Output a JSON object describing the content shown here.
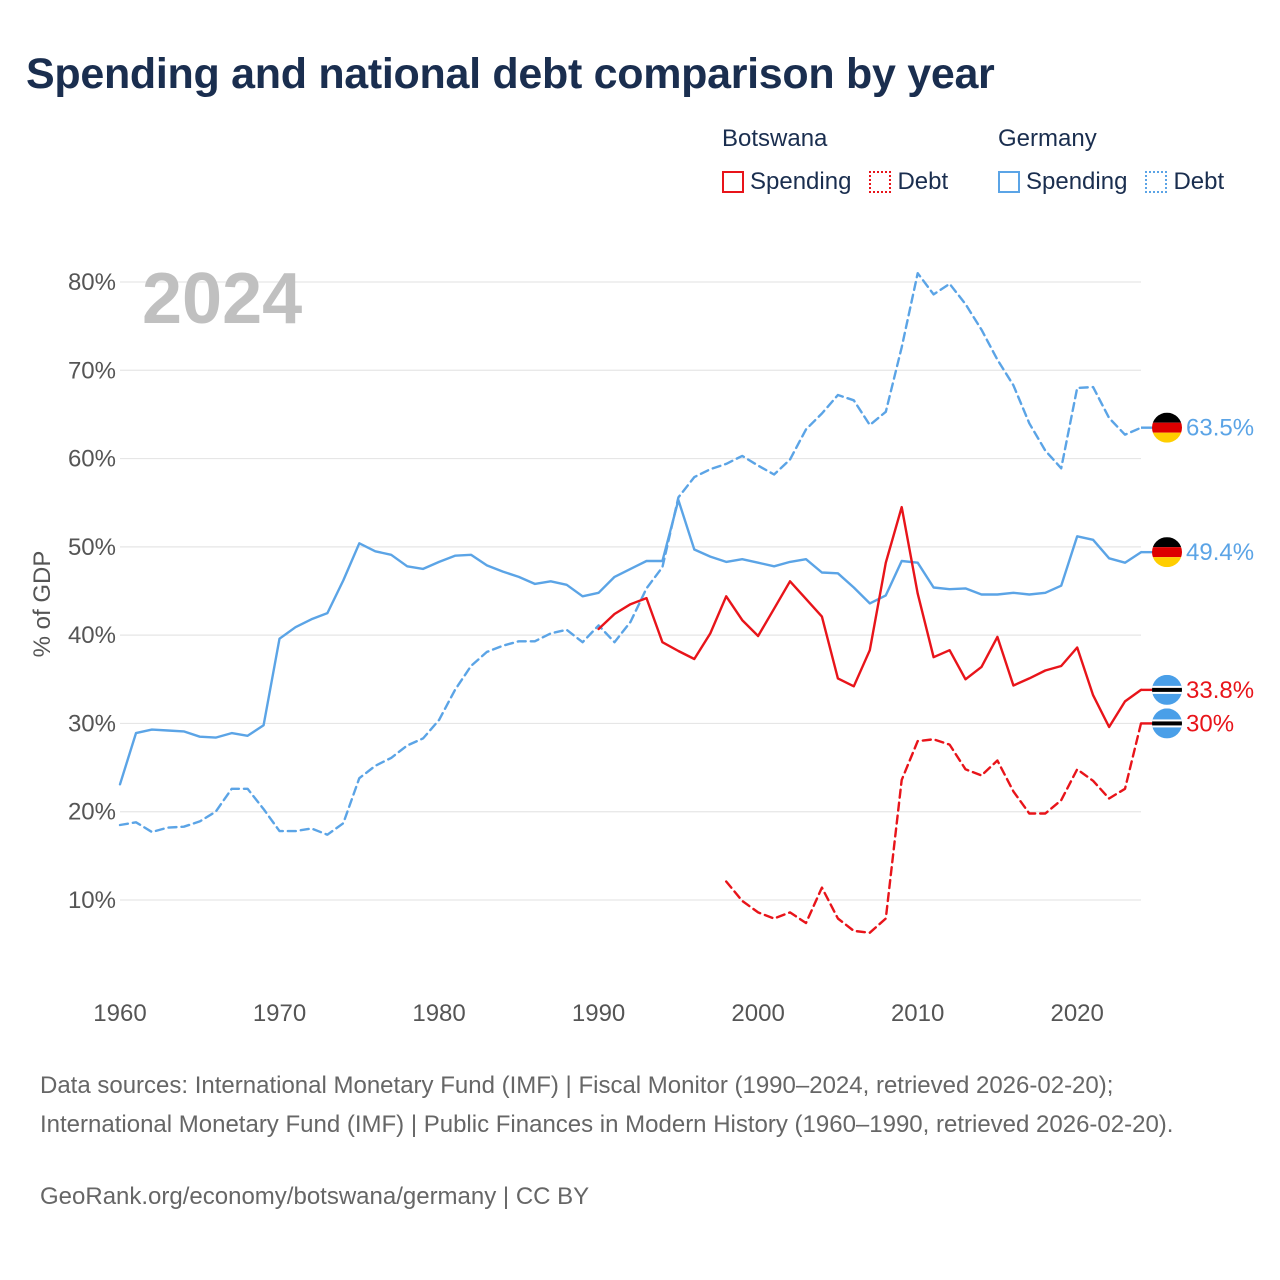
{
  "title": "Spending and national debt comparison by year",
  "legend": {
    "groups": [
      {
        "name": "Botswana",
        "color": "#e8141a",
        "items": [
          {
            "label": "Spending",
            "style": "solid"
          },
          {
            "label": "Debt",
            "style": "dotted"
          }
        ]
      },
      {
        "name": "Germany",
        "color": "#5ba4e6",
        "items": [
          {
            "label": "Spending",
            "style": "solid"
          },
          {
            "label": "Debt",
            "style": "dotted"
          }
        ]
      }
    ]
  },
  "year_label": "2024",
  "sources": "Data sources: International Monetary Fund (IMF) | Fiscal Monitor (1990–2024, retrieved 2026-02-20); International Monetary Fund (IMF) | Public Finances in Modern History (1960–1990, retrieved 2026-02-20).",
  "credit": "GeoRank.org/economy/botswana/germany | CC BY",
  "colors": {
    "botswana": "#e8141a",
    "germany": "#5ba4e6",
    "grid": "#e6e6e6",
    "axis_text": "#555555",
    "year_text": "#c0c0c0"
  },
  "chart_data": {
    "type": "line",
    "title": "Spending and national debt comparison by year",
    "xlabel": "",
    "ylabel": "% of GDP",
    "xlim": [
      1960,
      2024
    ],
    "ylim": [
      0,
      82
    ],
    "x_ticks": [
      1960,
      1970,
      1980,
      1990,
      2000,
      2010,
      2020
    ],
    "y_ticks": [
      {
        "value": 10,
        "label": "10%"
      },
      {
        "value": 20,
        "label": "20%"
      },
      {
        "value": 30,
        "label": "30%"
      },
      {
        "value": 40,
        "label": "40%"
      },
      {
        "value": 50,
        "label": "50%"
      },
      {
        "value": 60,
        "label": "60%"
      },
      {
        "value": 70,
        "label": "70%"
      },
      {
        "value": 80,
        "label": "80%"
      }
    ],
    "series": [
      {
        "name": "Germany Spending",
        "country": "germany",
        "style": "solid",
        "end_label": "49.4%",
        "x": [
          1960,
          1961,
          1962,
          1963,
          1964,
          1965,
          1966,
          1967,
          1968,
          1969,
          1970,
          1971,
          1972,
          1973,
          1974,
          1975,
          1976,
          1977,
          1978,
          1979,
          1980,
          1981,
          1982,
          1983,
          1984,
          1985,
          1986,
          1987,
          1988,
          1989,
          1990,
          1991,
          1992,
          1993,
          1994,
          1995,
          1996,
          1997,
          1998,
          1999,
          2000,
          2001,
          2002,
          2003,
          2004,
          2005,
          2006,
          2007,
          2008,
          2009,
          2010,
          2011,
          2012,
          2013,
          2014,
          2015,
          2016,
          2017,
          2018,
          2019,
          2020,
          2021,
          2022,
          2023,
          2024
        ],
        "values": [
          23.1,
          28.9,
          29.3,
          29.2,
          29.1,
          28.5,
          28.4,
          28.9,
          28.6,
          29.8,
          39.6,
          40.9,
          41.8,
          42.5,
          46.2,
          50.4,
          49.5,
          49.1,
          47.8,
          47.5,
          48.3,
          49.0,
          49.1,
          47.9,
          47.2,
          46.6,
          45.8,
          46.1,
          45.7,
          44.4,
          44.8,
          46.6,
          47.5,
          48.4,
          48.4,
          55.3,
          49.7,
          48.9,
          48.3,
          48.6,
          48.2,
          47.8,
          48.3,
          48.6,
          47.1,
          47.0,
          45.4,
          43.6,
          44.5,
          48.4,
          48.2,
          45.4,
          45.2,
          45.3,
          44.6,
          44.6,
          44.8,
          44.6,
          44.8,
          45.6,
          51.2,
          50.8,
          48.7,
          48.2,
          49.4
        ]
      },
      {
        "name": "Germany Debt",
        "country": "germany",
        "style": "dashed",
        "end_label": "63.5%",
        "x": [
          1960,
          1961,
          1962,
          1963,
          1964,
          1965,
          1966,
          1967,
          1968,
          1969,
          1970,
          1971,
          1972,
          1973,
          1974,
          1975,
          1976,
          1977,
          1978,
          1979,
          1980,
          1981,
          1982,
          1983,
          1984,
          1985,
          1986,
          1987,
          1988,
          1989,
          1990,
          1991,
          1992,
          1993,
          1994,
          1995,
          1996,
          1997,
          1998,
          1999,
          2000,
          2001,
          2002,
          2003,
          2004,
          2005,
          2006,
          2007,
          2008,
          2009,
          2010,
          2011,
          2012,
          2013,
          2014,
          2015,
          2016,
          2017,
          2018,
          2019,
          2020,
          2021,
          2022,
          2023,
          2024
        ],
        "values": [
          18.5,
          18.8,
          17.7,
          18.2,
          18.3,
          18.9,
          20.0,
          22.6,
          22.6,
          20.3,
          17.8,
          17.8,
          18.1,
          17.4,
          18.7,
          23.8,
          25.2,
          26.1,
          27.5,
          28.3,
          30.4,
          33.8,
          36.5,
          38.1,
          38.8,
          39.3,
          39.3,
          40.2,
          40.6,
          39.2,
          41.1,
          39.2,
          41.5,
          45.3,
          47.7,
          55.6,
          57.9,
          58.8,
          59.4,
          60.3,
          59.2,
          58.2,
          59.9,
          63.3,
          65.1,
          67.2,
          66.6,
          63.8,
          65.3,
          72.6,
          81.0,
          78.6,
          79.8,
          77.5,
          74.6,
          71.2,
          68.3,
          64.0,
          60.9,
          58.9,
          68.0,
          68.1,
          64.6,
          62.7,
          63.5
        ]
      },
      {
        "name": "Botswana Spending",
        "country": "botswana",
        "style": "solid",
        "end_label": "33.8%",
        "x": [
          1990,
          1991,
          1992,
          1993,
          1994,
          1995,
          1996,
          1997,
          1998,
          1999,
          2000,
          2001,
          2002,
          2003,
          2004,
          2005,
          2006,
          2007,
          2008,
          2009,
          2010,
          2011,
          2012,
          2013,
          2014,
          2015,
          2016,
          2017,
          2018,
          2019,
          2020,
          2021,
          2022,
          2023,
          2024
        ],
        "values": [
          40.7,
          42.4,
          43.5,
          44.2,
          39.2,
          38.2,
          37.3,
          40.2,
          44.4,
          41.7,
          39.9,
          43.0,
          46.1,
          44.1,
          42.1,
          35.1,
          34.2,
          38.3,
          48.2,
          54.5,
          44.7,
          37.5,
          38.3,
          35.0,
          36.4,
          39.8,
          34.3,
          35.1,
          36.0,
          36.5,
          38.6,
          33.2,
          29.6,
          32.5,
          33.8
        ]
      },
      {
        "name": "Botswana Debt",
        "country": "botswana",
        "style": "dashed",
        "end_label": "30%",
        "x": [
          1998,
          1999,
          2000,
          2001,
          2002,
          2003,
          2004,
          2005,
          2006,
          2007,
          2008,
          2009,
          2010,
          2011,
          2012,
          2013,
          2014,
          2015,
          2016,
          2017,
          2018,
          2019,
          2020,
          2021,
          2022,
          2023,
          2024
        ],
        "values": [
          12.1,
          9.9,
          8.6,
          7.9,
          8.6,
          7.4,
          11.4,
          7.9,
          6.5,
          6.3,
          7.9,
          23.6,
          28.0,
          28.2,
          27.6,
          24.8,
          24.1,
          25.8,
          22.3,
          19.8,
          19.8,
          21.3,
          24.8,
          23.5,
          21.5,
          22.6,
          30.0
        ]
      }
    ]
  }
}
